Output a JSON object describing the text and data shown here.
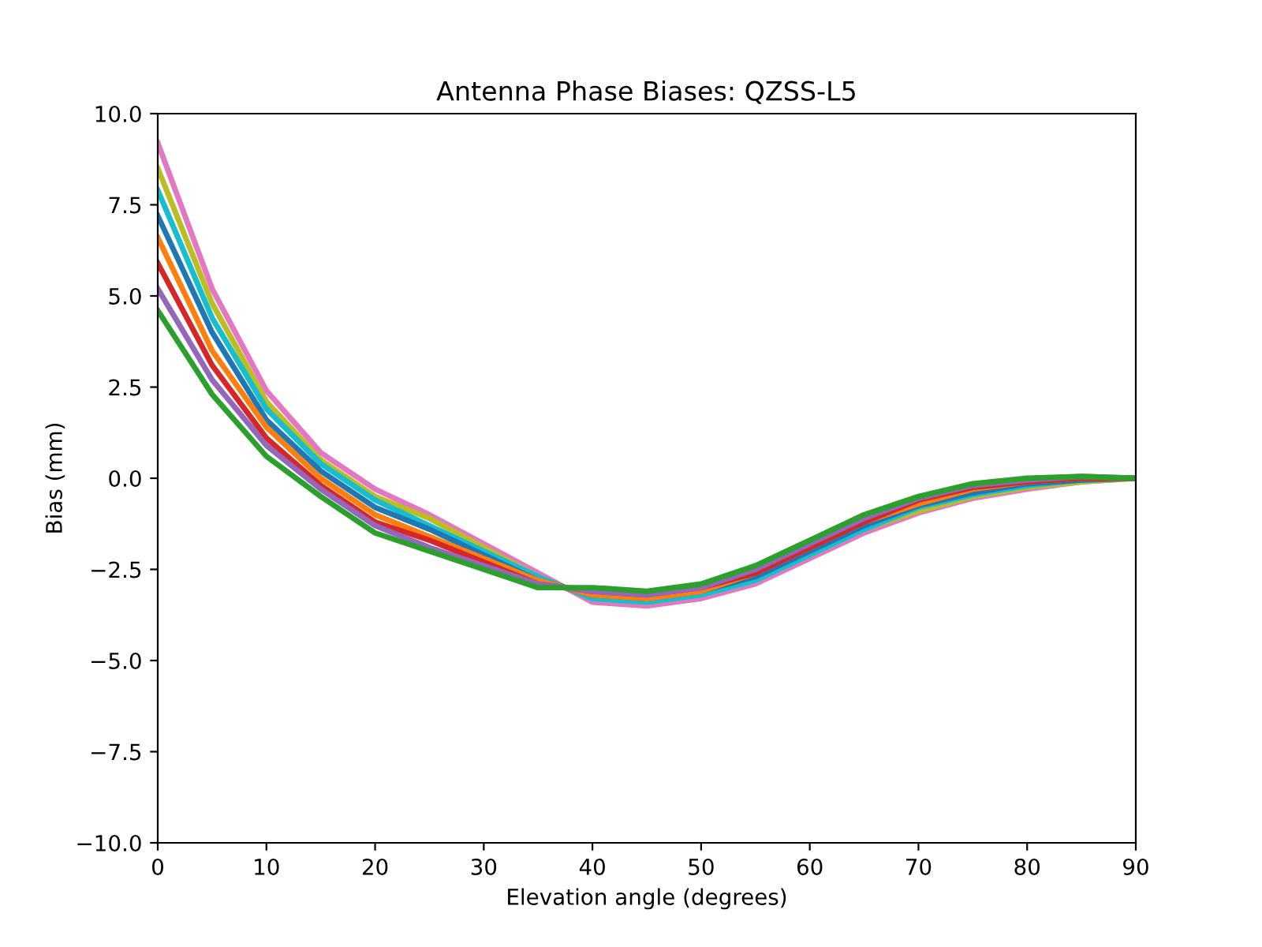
{
  "chart_data": {
    "type": "line",
    "title": "Antenna Phase Biases: QZSS-L5",
    "xlabel": "Elevation angle (degrees)",
    "ylabel": "Bias (mm)",
    "x": [
      0,
      5,
      10,
      15,
      20,
      25,
      30,
      35,
      40,
      45,
      50,
      55,
      60,
      65,
      70,
      75,
      80,
      85,
      90
    ],
    "series": [
      {
        "color": "#e377c2",
        "values": [
          9.2,
          5.2,
          2.4,
          0.7,
          -0.3,
          -1.0,
          -1.8,
          -2.6,
          -3.4,
          -3.5,
          -3.3,
          -2.9,
          -2.2,
          -1.5,
          -0.95,
          -0.55,
          -0.3,
          -0.1,
          0
        ]
      },
      {
        "color": "#bcbd22",
        "values": [
          8.5,
          4.8,
          2.1,
          0.5,
          -0.5,
          -1.1,
          -1.9,
          -2.7,
          -3.3,
          -3.4,
          -3.2,
          -2.8,
          -2.1,
          -1.4,
          -0.9,
          -0.5,
          -0.25,
          -0.1,
          0
        ]
      },
      {
        "color": "#17becf",
        "values": [
          7.9,
          4.4,
          1.9,
          0.4,
          -0.6,
          -1.3,
          -2.0,
          -2.7,
          -3.3,
          -3.4,
          -3.2,
          -2.8,
          -2.1,
          -1.4,
          -0.8,
          -0.45,
          -0.2,
          -0.05,
          0
        ]
      },
      {
        "color": "#1f77b4",
        "values": [
          7.2,
          4.0,
          1.6,
          0.2,
          -0.8,
          -1.4,
          -2.1,
          -2.8,
          -3.2,
          -3.3,
          -3.1,
          -2.7,
          -2.0,
          -1.3,
          -0.75,
          -0.4,
          -0.15,
          -0.05,
          0
        ]
      },
      {
        "color": "#ff7f0e",
        "values": [
          6.6,
          3.5,
          1.4,
          0.0,
          -1.0,
          -1.6,
          -2.2,
          -2.8,
          -3.2,
          -3.3,
          -3.1,
          -2.6,
          -1.9,
          -1.2,
          -0.7,
          -0.3,
          -0.1,
          0,
          0
        ]
      },
      {
        "color": "#d62728",
        "values": [
          5.9,
          3.1,
          1.1,
          -0.2,
          -1.2,
          -1.7,
          -2.3,
          -2.9,
          -3.1,
          -3.2,
          -3.0,
          -2.6,
          -1.9,
          -1.2,
          -0.6,
          -0.25,
          -0.1,
          0,
          0
        ]
      },
      {
        "color": "#9467bd",
        "values": [
          5.2,
          2.7,
          0.9,
          -0.3,
          -1.3,
          -1.9,
          -2.4,
          -2.9,
          -3.1,
          -3.2,
          -3.0,
          -2.5,
          -1.8,
          -1.1,
          -0.55,
          -0.2,
          -0.05,
          0.05,
          0
        ]
      },
      {
        "color": "#2ca02c",
        "values": [
          4.6,
          2.3,
          0.6,
          -0.5,
          -1.5,
          -2.0,
          -2.5,
          -3.0,
          -3.0,
          -3.1,
          -2.9,
          -2.4,
          -1.7,
          -1.0,
          -0.5,
          -0.15,
          0,
          0.05,
          0
        ]
      }
    ],
    "xlim": [
      0,
      90
    ],
    "xticks": [
      0,
      10,
      20,
      30,
      40,
      50,
      60,
      70,
      80,
      90
    ],
    "ylim": [
      -10,
      10
    ],
    "yticks": [
      {
        "value": -10,
        "label": "−10.0"
      },
      {
        "value": -7.5,
        "label": "−7.5"
      },
      {
        "value": -5,
        "label": "−5.0"
      },
      {
        "value": -2.5,
        "label": "−2.5"
      },
      {
        "value": 0,
        "label": "0.0"
      },
      {
        "value": 2.5,
        "label": "2.5"
      },
      {
        "value": 5,
        "label": "5.0"
      },
      {
        "value": 7.5,
        "label": "7.5"
      },
      {
        "value": 10,
        "label": "10.0"
      }
    ],
    "grid": false,
    "legend": false,
    "marker": "none",
    "line_style": "solid"
  }
}
